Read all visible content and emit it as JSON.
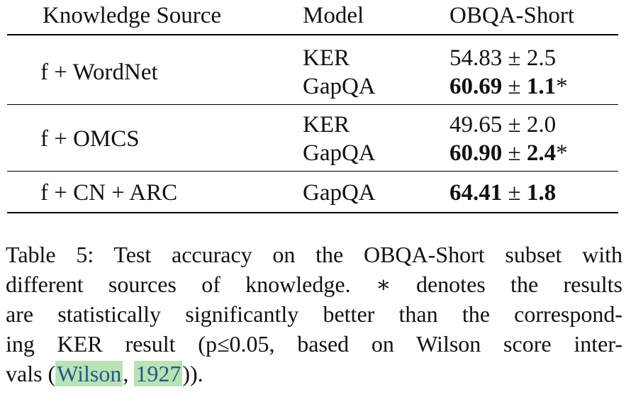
{
  "table": {
    "headers": [
      "Knowledge Source",
      "Model",
      "OBQA-Short"
    ],
    "groups": [
      {
        "source": "f + WordNet",
        "rows": [
          {
            "model": "KER",
            "score": "54.83",
            "pm": "±",
            "err": "2.5",
            "star": "",
            "bold": false
          },
          {
            "model": "GapQA",
            "score": "60.69",
            "pm": "±",
            "err": "1.1",
            "star": "*",
            "bold": true
          }
        ]
      },
      {
        "source": "f + OMCS",
        "rows": [
          {
            "model": "KER",
            "score": "49.65",
            "pm": "±",
            "err": "2.0",
            "star": "",
            "bold": false
          },
          {
            "model": "GapQA",
            "score": "60.90",
            "pm": "±",
            "err": "2.4",
            "star": "*",
            "bold": true
          }
        ]
      },
      {
        "source": "f + CN + ARC",
        "rows": [
          {
            "model": "GapQA",
            "score": "64.41",
            "pm": "±",
            "err": "1.8",
            "star": "",
            "bold": true
          }
        ]
      }
    ]
  },
  "caption": {
    "line1": "Table 5: Test accuracy on the OBQA-Short subset with",
    "line2a": "different sources of knowledge.",
    "line2b": "∗ denotes the results",
    "line3": "are statistically significantly better than the correspond-",
    "line4": "ing KER result (p≤0.05, based on Wilson score inter-",
    "line5_pre": "vals (",
    "cite_author": "Wilson",
    "cite_sep": ", ",
    "cite_year": "1927",
    "line5_post": "))."
  }
}
